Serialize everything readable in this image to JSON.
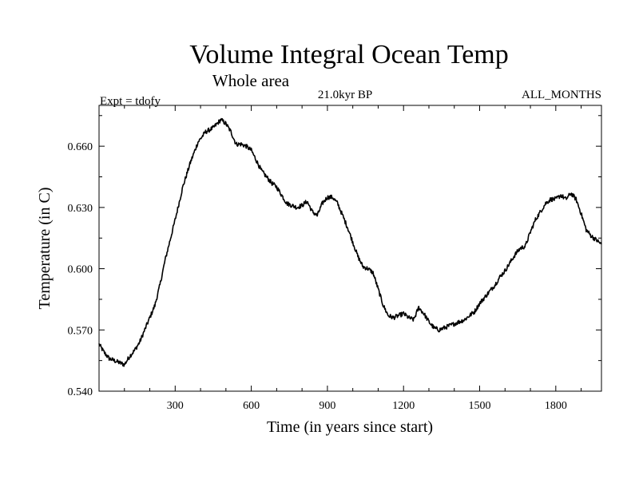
{
  "chart_data": {
    "type": "line",
    "title": "Volume Integral Ocean Temp",
    "subtitle": "Whole area",
    "annotations": {
      "experiment": "Expt = tdofy",
      "period": "21.0kyr BP",
      "months": "ALL_MONTHS"
    },
    "xlabel": "Time (in years since start)",
    "ylabel": "Temperature (in C)",
    "xlim": [
      0,
      1980
    ],
    "ylim": [
      0.54,
      0.68
    ],
    "xticks": [
      300,
      600,
      900,
      1200,
      1500,
      1800
    ],
    "xtick_labels": [
      "300",
      "600",
      "900",
      "1200",
      "1500",
      "1800"
    ],
    "yticks": [
      0.54,
      0.57,
      0.6,
      0.63,
      0.66
    ],
    "ytick_labels": [
      "0.540",
      "0.570",
      "0.600",
      "0.630",
      "0.660"
    ],
    "grid": false,
    "legend": "none",
    "series": [
      {
        "color": "#000000",
        "x": [
          0,
          20,
          40,
          60,
          80,
          100,
          120,
          140,
          160,
          180,
          200,
          220,
          240,
          260,
          280,
          300,
          330,
          360,
          390,
          420,
          450,
          480,
          500,
          520,
          540,
          560,
          580,
          600,
          620,
          640,
          660,
          680,
          700,
          720,
          740,
          760,
          780,
          800,
          820,
          840,
          860,
          880,
          900,
          920,
          940,
          960,
          980,
          1000,
          1020,
          1040,
          1060,
          1080,
          1100,
          1120,
          1140,
          1160,
          1180,
          1200,
          1220,
          1240,
          1260,
          1280,
          1300,
          1320,
          1340,
          1360,
          1380,
          1400,
          1420,
          1440,
          1460,
          1480,
          1500,
          1520,
          1540,
          1560,
          1580,
          1600,
          1620,
          1640,
          1660,
          1680,
          1700,
          1720,
          1740,
          1760,
          1780,
          1800,
          1820,
          1840,
          1860,
          1880,
          1900,
          1920,
          1940,
          1960,
          1980
        ],
        "values": [
          0.563,
          0.559,
          0.556,
          0.555,
          0.554,
          0.553,
          0.557,
          0.56,
          0.564,
          0.57,
          0.576,
          0.582,
          0.592,
          0.604,
          0.614,
          0.624,
          0.64,
          0.652,
          0.662,
          0.667,
          0.669,
          0.673,
          0.671,
          0.667,
          0.661,
          0.661,
          0.66,
          0.658,
          0.653,
          0.648,
          0.645,
          0.642,
          0.64,
          0.636,
          0.632,
          0.631,
          0.63,
          0.631,
          0.633,
          0.628,
          0.626,
          0.632,
          0.635,
          0.635,
          0.632,
          0.626,
          0.62,
          0.613,
          0.606,
          0.601,
          0.6,
          0.598,
          0.59,
          0.582,
          0.577,
          0.576,
          0.577,
          0.578,
          0.576,
          0.575,
          0.581,
          0.578,
          0.574,
          0.571,
          0.57,
          0.571,
          0.572,
          0.573,
          0.574,
          0.575,
          0.577,
          0.579,
          0.583,
          0.586,
          0.589,
          0.592,
          0.596,
          0.599,
          0.603,
          0.607,
          0.61,
          0.611,
          0.618,
          0.624,
          0.628,
          0.632,
          0.634,
          0.634,
          0.636,
          0.634,
          0.637,
          0.634,
          0.627,
          0.619,
          0.616,
          0.614,
          0.612
        ]
      }
    ]
  }
}
